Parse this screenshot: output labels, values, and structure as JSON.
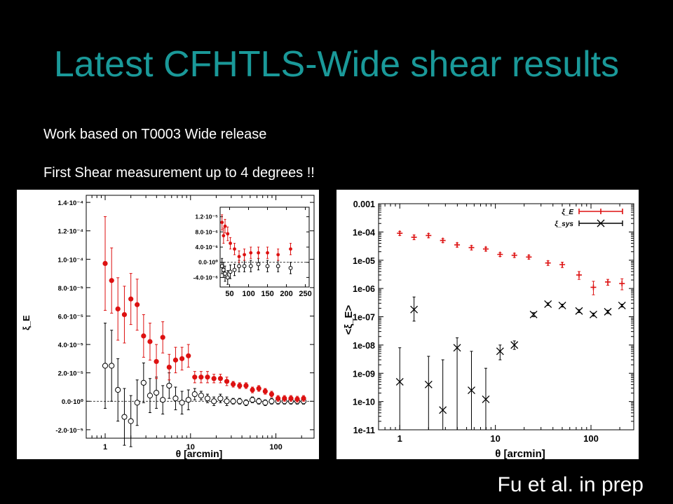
{
  "slide": {
    "title": "Latest CFHTLS-Wide shear results",
    "bullets": [
      "Work based on T0003 Wide release",
      "First Shear measurement  up to 4 degrees !!"
    ],
    "credit": "Fu et al. in prep"
  },
  "colors": {
    "title": "#1a9999",
    "background": "#000000",
    "emode": "#dd1111",
    "bmode": "#000000"
  },
  "chart_data": [
    {
      "type": "scatter",
      "xscale": "log",
      "xlim": [
        0.6,
        280
      ],
      "ylim": [
        -2.6e-05,
        0.000145
      ],
      "xlabel": "θ [arcmin]",
      "ylabel": "ξ_E",
      "x_ticks": [
        {
          "v": 1,
          "label": "1"
        },
        {
          "v": 10,
          "label": "10"
        },
        {
          "v": 100,
          "label": "100"
        }
      ],
      "y_ticks": [
        {
          "v": 0.00014,
          "label": "1.4·10⁻⁴"
        },
        {
          "v": 0.00012,
          "label": "1.2·10⁻⁴"
        },
        {
          "v": 0.0001,
          "label": "1.0·10⁻⁴"
        },
        {
          "v": 8e-05,
          "label": "8.0·10⁻⁵"
        },
        {
          "v": 6e-05,
          "label": "6.0·10⁻⁵"
        },
        {
          "v": 4e-05,
          "label": "4.0·10⁻⁵"
        },
        {
          "v": 2e-05,
          "label": "2.0·10⁻⁵"
        },
        {
          "v": 0,
          "label": "0.0·10⁰"
        },
        {
          "v": -2e-05,
          "label": "-2.0·10⁻⁵"
        }
      ],
      "series": [
        {
          "marker": "filled-circle",
          "points": [
            {
              "x": 1.0,
              "y": 9.7e-05,
              "err": 3.3e-05
            },
            {
              "x": 1.19,
              "y": 8.5e-05,
              "err": 2.3e-05
            },
            {
              "x": 1.41,
              "y": 6.5e-05,
              "err": 2.2e-05
            },
            {
              "x": 1.68,
              "y": 6.1e-05,
              "err": 2e-05
            },
            {
              "x": 2.0,
              "y": 7.2e-05,
              "err": 1.8e-05
            },
            {
              "x": 2.37,
              "y": 6.8e-05,
              "err": 1.8e-05
            },
            {
              "x": 2.82,
              "y": 4.6e-05,
              "err": 1.5e-05
            },
            {
              "x": 3.35,
              "y": 4.2e-05,
              "err": 1.3e-05
            },
            {
              "x": 3.98,
              "y": 2.8e-05,
              "err": 1.2e-05
            },
            {
              "x": 4.73,
              "y": 4.5e-05,
              "err": 1.1e-05
            },
            {
              "x": 5.62,
              "y": 2.4e-05,
              "err": 9e-06
            },
            {
              "x": 6.68,
              "y": 2.9e-05,
              "err": 9e-06
            },
            {
              "x": 7.94,
              "y": 3e-05,
              "err": 8e-06
            },
            {
              "x": 9.44,
              "y": 3.2e-05,
              "err": 8e-06
            },
            {
              "x": 11.2,
              "y": 1.7e-05,
              "err": 4e-06
            },
            {
              "x": 13.3,
              "y": 1.7e-05,
              "err": 4e-06
            },
            {
              "x": 15.8,
              "y": 1.7e-05,
              "err": 4e-06
            },
            {
              "x": 18.8,
              "y": 1.6e-05,
              "err": 3e-06
            },
            {
              "x": 22.4,
              "y": 1.6e-05,
              "err": 3e-06
            },
            {
              "x": 26.6,
              "y": 1.4e-05,
              "err": 3e-06
            },
            {
              "x": 31.6,
              "y": 1.2e-05,
              "err": 2e-06
            },
            {
              "x": 37.6,
              "y": 1.1e-05,
              "err": 2e-06
            },
            {
              "x": 44.7,
              "y": 1.1e-05,
              "err": 2e-06
            },
            {
              "x": 53.1,
              "y": 8e-06,
              "err": 2e-06
            },
            {
              "x": 63.1,
              "y": 9e-06,
              "err": 2e-06
            },
            {
              "x": 75.0,
              "y": 7e-06,
              "err": 2e-06
            },
            {
              "x": 89.1,
              "y": 5e-06,
              "err": 2e-06
            },
            {
              "x": 106,
              "y": 2e-06,
              "err": 2e-06
            },
            {
              "x": 126,
              "y": 2e-06,
              "err": 2e-06
            },
            {
              "x": 150,
              "y": 2e-06,
              "err": 2e-06
            },
            {
              "x": 178,
              "y": 1.5e-06,
              "err": 2e-06
            },
            {
              "x": 211,
              "y": 2e-06,
              "err": 2e-06
            }
          ]
        },
        {
          "marker": "open-circle",
          "points": [
            {
              "x": 1.0,
              "y": 2.5e-05,
              "err": 3e-05
            },
            {
              "x": 1.19,
              "y": 2.5e-05,
              "err": 2.5e-05
            },
            {
              "x": 1.41,
              "y": 8e-06,
              "err": 2.2e-05
            },
            {
              "x": 1.68,
              "y": -1.1e-05,
              "err": 2e-05
            },
            {
              "x": 2.0,
              "y": -1.4e-05,
              "err": 1.8e-05
            },
            {
              "x": 2.37,
              "y": -1e-06,
              "err": 1.6e-05
            },
            {
              "x": 2.82,
              "y": 1.3e-05,
              "err": 1.4e-05
            },
            {
              "x": 3.35,
              "y": 4e-06,
              "err": 1.2e-05
            },
            {
              "x": 3.98,
              "y": 6e-06,
              "err": 1.1e-05
            },
            {
              "x": 4.73,
              "y": 1e-06,
              "err": 1e-05
            },
            {
              "x": 5.62,
              "y": 1.1e-05,
              "err": 9e-06
            },
            {
              "x": 6.68,
              "y": 2e-06,
              "err": 8e-06
            },
            {
              "x": 7.94,
              "y": -1e-06,
              "err": 8e-06
            },
            {
              "x": 9.44,
              "y": 1e-06,
              "err": 7e-06
            },
            {
              "x": 11.2,
              "y": 5e-06,
              "err": 4e-06
            },
            {
              "x": 13.3,
              "y": 4e-06,
              "err": 3e-06
            },
            {
              "x": 15.8,
              "y": 2e-06,
              "err": 3e-06
            },
            {
              "x": 18.8,
              "y": 0.0,
              "err": 3e-06
            },
            {
              "x": 22.4,
              "y": 2e-06,
              "err": 3e-06
            },
            {
              "x": 26.6,
              "y": 0.0,
              "err": 3e-06
            },
            {
              "x": 31.6,
              "y": 0.0,
              "err": 2e-06
            },
            {
              "x": 37.6,
              "y": 0.0,
              "err": 2e-06
            },
            {
              "x": 44.7,
              "y": -1e-06,
              "err": 2e-06
            },
            {
              "x": 53.1,
              "y": 1e-06,
              "err": 2e-06
            },
            {
              "x": 63.1,
              "y": 0.0,
              "err": 2e-06
            },
            {
              "x": 75.0,
              "y": -1e-06,
              "err": 2e-06
            },
            {
              "x": 89.1,
              "y": 0.0,
              "err": 2e-06
            },
            {
              "x": 106,
              "y": 0.0,
              "err": 2e-06
            },
            {
              "x": 126,
              "y": 0.0,
              "err": 2e-06
            },
            {
              "x": 150,
              "y": 0.0,
              "err": 2e-06
            },
            {
              "x": 178,
              "y": 0.0,
              "err": 2e-06
            },
            {
              "x": 211,
              "y": 0.0,
              "err": 2e-06
            }
          ]
        }
      ],
      "inset": {
        "xscale": "linear",
        "xlim": [
          25,
          260
        ],
        "ylim": [
          -6.5e-06,
          1.45e-05
        ],
        "x_ticks": [
          {
            "v": 50,
            "label": "50"
          },
          {
            "v": 100,
            "label": "100"
          },
          {
            "v": 150,
            "label": "150"
          },
          {
            "v": 200,
            "label": "200"
          },
          {
            "v": 250,
            "label": "250"
          }
        ],
        "y_ticks": [
          {
            "v": 1.2e-05,
            "label": "1.2·10⁻⁵"
          },
          {
            "v": 8e-06,
            "label": "8.0·10⁻⁶"
          },
          {
            "v": 4e-06,
            "label": "4.0·10⁻⁶"
          },
          {
            "v": 0,
            "label": "0.0·10⁰"
          },
          {
            "v": -4e-06,
            "label": "-4.0·10⁻⁶"
          }
        ],
        "series": [
          {
            "marker": "filled-circle",
            "points": [
              {
                "x": 30,
                "y": 1.05e-05,
                "err": 2e-06
              },
              {
                "x": 34,
                "y": 7e-06,
                "err": 2e-06
              },
              {
                "x": 38,
                "y": 9.5e-06,
                "err": 1.8e-06
              },
              {
                "x": 45,
                "y": 7.5e-06,
                "err": 1.8e-06
              },
              {
                "x": 52,
                "y": 5e-06,
                "err": 1.5e-06
              },
              {
                "x": 63,
                "y": 3.5e-06,
                "err": 1.5e-06
              },
              {
                "x": 75,
                "y": 1.5e-06,
                "err": 1.5e-06
              },
              {
                "x": 89,
                "y": 2e-06,
                "err": 1.5e-06
              },
              {
                "x": 106,
                "y": 2.5e-06,
                "err": 1.5e-06
              },
              {
                "x": 126,
                "y": 2.5e-06,
                "err": 1.5e-06
              },
              {
                "x": 150,
                "y": 2.5e-06,
                "err": 1.5e-06
              },
              {
                "x": 178,
                "y": 2e-06,
                "err": 1.5e-06
              },
              {
                "x": 211,
                "y": 3.5e-06,
                "err": 1.5e-06
              }
            ]
          },
          {
            "marker": "open-circle",
            "points": [
              {
                "x": 30,
                "y": -1e-06,
                "err": 2e-06
              },
              {
                "x": 34,
                "y": -2e-06,
                "err": 2e-06
              },
              {
                "x": 38,
                "y": -3e-06,
                "err": 2e-06
              },
              {
                "x": 45,
                "y": -4e-06,
                "err": 1.8e-06
              },
              {
                "x": 52,
                "y": -2.5e-06,
                "err": 1.8e-06
              },
              {
                "x": 63,
                "y": -2e-06,
                "err": 1.5e-06
              },
              {
                "x": 75,
                "y": -1e-06,
                "err": 1.5e-06
              },
              {
                "x": 89,
                "y": -1e-06,
                "err": 1.5e-06
              },
              {
                "x": 106,
                "y": -1e-06,
                "err": 1.5e-06
              },
              {
                "x": 126,
                "y": -5e-07,
                "err": 1.5e-06
              },
              {
                "x": 150,
                "y": -1e-06,
                "err": 1.5e-06
              },
              {
                "x": 178,
                "y": -1e-06,
                "err": 1.5e-06
              },
              {
                "x": 211,
                "y": -1.5e-06,
                "err": 1.5e-06
              }
            ]
          }
        ]
      }
    },
    {
      "type": "scatter",
      "xscale": "log",
      "yscale": "log",
      "xlim": [
        0.6,
        280
      ],
      "ylim": [
        1e-11,
        0.001
      ],
      "xlabel": "θ [arcmin]",
      "ylabel": "<ξ_E>",
      "x_ticks": [
        {
          "v": 1,
          "label": "1"
        },
        {
          "v": 10,
          "label": "10"
        },
        {
          "v": 100,
          "label": "100"
        }
      ],
      "y_ticks": [
        {
          "v": 0.001,
          "label": "0.001"
        },
        {
          "v": 0.0001,
          "label": "1e-04"
        },
        {
          "v": 1e-05,
          "label": "1e-05"
        },
        {
          "v": 1e-06,
          "label": "1e-06"
        },
        {
          "v": 1e-07,
          "label": "1e-07"
        },
        {
          "v": 1e-08,
          "label": "1e-08"
        },
        {
          "v": 1e-09,
          "label": "1e-09"
        },
        {
          "v": 1e-10,
          "label": "1e-10"
        },
        {
          "v": 1e-11,
          "label": "1e-11"
        }
      ],
      "legend_position": "top-right",
      "series": [
        {
          "name": "ξ_E",
          "marker": "plus",
          "points": [
            {
              "x": 1.0,
              "y": 9e-05,
              "lo": 7.5e-05,
              "hi": 0.000105
            },
            {
              "x": 1.41,
              "y": 6.5e-05,
              "lo": 5.3e-05,
              "hi": 7.8e-05
            },
            {
              "x": 2.0,
              "y": 7.5e-05,
              "lo": 6.2e-05,
              "hi": 8.8e-05
            },
            {
              "x": 2.82,
              "y": 5e-05,
              "lo": 4.2e-05,
              "hi": 5.8e-05
            },
            {
              "x": 3.98,
              "y": 3.5e-05,
              "lo": 2.9e-05,
              "hi": 4.1e-05
            },
            {
              "x": 5.62,
              "y": 2.8e-05,
              "lo": 2.3e-05,
              "hi": 3.3e-05
            },
            {
              "x": 7.94,
              "y": 2.5e-05,
              "lo": 2.1e-05,
              "hi": 2.9e-05
            },
            {
              "x": 11.2,
              "y": 1.6e-05,
              "lo": 1.35e-05,
              "hi": 1.85e-05
            },
            {
              "x": 15.8,
              "y": 1.5e-05,
              "lo": 1.25e-05,
              "hi": 1.75e-05
            },
            {
              "x": 22.4,
              "y": 1.3e-05,
              "lo": 1.1e-05,
              "hi": 1.5e-05
            },
            {
              "x": 35.5,
              "y": 8e-06,
              "lo": 6.5e-06,
              "hi": 9.5e-06
            },
            {
              "x": 50.1,
              "y": 7e-06,
              "lo": 5.5e-06,
              "hi": 8.5e-06
            },
            {
              "x": 75.0,
              "y": 3e-06,
              "lo": 2.1e-06,
              "hi": 4e-06
            },
            {
              "x": 106,
              "y": 1.1e-06,
              "lo": 6e-07,
              "hi": 1.8e-06
            },
            {
              "x": 150,
              "y": 1.7e-06,
              "lo": 1.3e-06,
              "hi": 2.1e-06
            },
            {
              "x": 211,
              "y": 1.5e-06,
              "lo": 9e-07,
              "hi": 2.2e-06
            }
          ]
        },
        {
          "name": "ξ_sys",
          "marker": "cross",
          "points": [
            {
              "x": 1.0,
              "y": 5e-10,
              "lo": 1e-11,
              "hi": 8e-09
            },
            {
              "x": 1.41,
              "y": 1.8e-07,
              "lo": 7e-08,
              "hi": 5e-07
            },
            {
              "x": 2.0,
              "y": 4e-10,
              "lo": 1e-11,
              "hi": 4e-09
            },
            {
              "x": 2.82,
              "y": 5e-11,
              "lo": 1e-11,
              "hi": 3e-09
            },
            {
              "x": 3.98,
              "y": 8e-09,
              "lo": 1e-11,
              "hi": 1.8e-08
            },
            {
              "x": 5.62,
              "y": 2.5e-10,
              "lo": 1e-11,
              "hi": 6e-09
            },
            {
              "x": 7.94,
              "y": 1.2e-10,
              "lo": 1e-11,
              "hi": 1.5e-09
            },
            {
              "x": 11.2,
              "y": 6e-09,
              "lo": 3e-09,
              "hi": 1e-08
            },
            {
              "x": 15.8,
              "y": 1e-08,
              "lo": 7e-09,
              "hi": 1.4e-08
            },
            {
              "x": 25.1,
              "y": 1.2e-07,
              "lo": 1e-07,
              "hi": 1.4e-07
            },
            {
              "x": 35.5,
              "y": 2.8e-07,
              "lo": 2.5e-07,
              "hi": 3.1e-07
            },
            {
              "x": 50.1,
              "y": 2.5e-07,
              "lo": 2.2e-07,
              "hi": 2.8e-07
            },
            {
              "x": 75.0,
              "y": 1.6e-07,
              "lo": 1.4e-07,
              "hi": 1.8e-07
            },
            {
              "x": 106,
              "y": 1.2e-07,
              "lo": 1.05e-07,
              "hi": 1.35e-07
            },
            {
              "x": 150,
              "y": 1.5e-07,
              "lo": 1.3e-07,
              "hi": 1.7e-07
            },
            {
              "x": 211,
              "y": 2.5e-07,
              "lo": 2.2e-07,
              "hi": 2.8e-07
            }
          ]
        }
      ]
    }
  ]
}
